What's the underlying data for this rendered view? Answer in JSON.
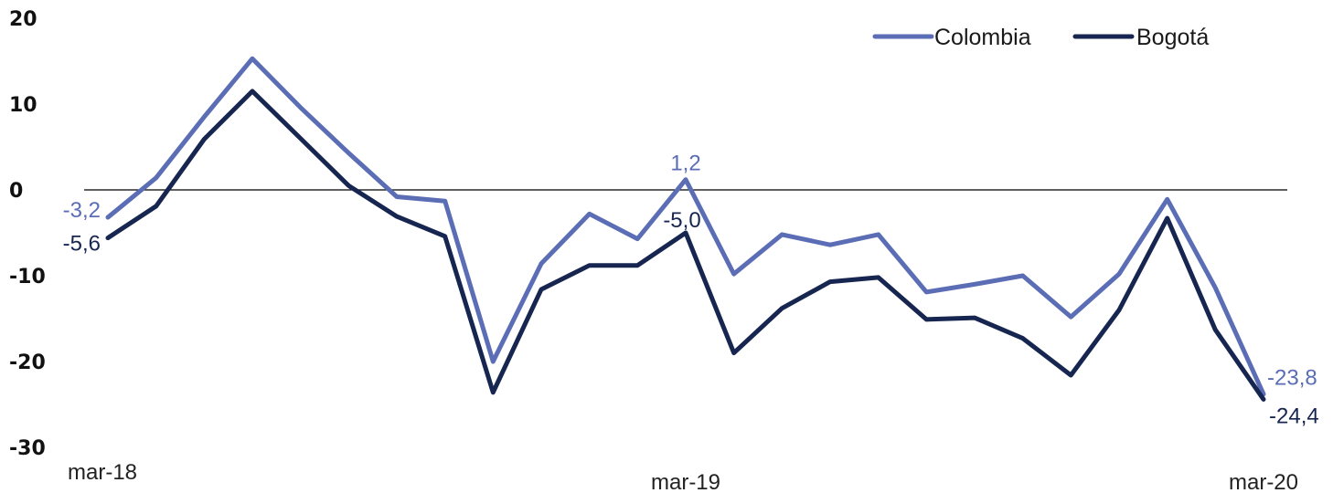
{
  "chart_data": {
    "type": "line",
    "title": "",
    "xlabel": "",
    "ylabel": "",
    "ylim": [
      -30,
      20
    ],
    "yticks": [
      20,
      10,
      0,
      -10,
      -20,
      -30
    ],
    "x_tick_labels": [
      "mar-18",
      "mar-19",
      "mar-20"
    ],
    "x_tick_indices": [
      0,
      12,
      24
    ],
    "zero_line": true,
    "grid": false,
    "legend_position": "top-right",
    "colors": {
      "Colombia": "#5b6db5",
      "Bogotá": "#172650"
    },
    "series": [
      {
        "name": "Colombia",
        "values": [
          -3.2,
          1.4,
          8.5,
          15.3,
          9.6,
          4.3,
          -0.8,
          -1.3,
          -20.0,
          -8.6,
          -2.8,
          -5.7,
          1.2,
          -9.8,
          -5.2,
          -6.4,
          -5.2,
          -11.9,
          -11.0,
          -10.0,
          -14.8,
          -9.8,
          -1.1,
          -11.4,
          -23.8
        ],
        "labels": [
          {
            "index": 0,
            "text": "-3,2"
          },
          {
            "index": 12,
            "text": "1,2"
          },
          {
            "index": 24,
            "text": "-23,8"
          }
        ]
      },
      {
        "name": "Bogotá",
        "values": [
          -5.6,
          -1.9,
          5.9,
          11.5,
          6.0,
          0.5,
          -3.1,
          -5.4,
          -23.6,
          -11.6,
          -8.8,
          -8.8,
          -5.0,
          -19.0,
          -13.8,
          -10.7,
          -10.2,
          -15.1,
          -14.9,
          -17.3,
          -21.6,
          -14.0,
          -3.3,
          -16.3,
          -24.4
        ],
        "labels": [
          {
            "index": 0,
            "text": "-5,6"
          },
          {
            "index": 12,
            "text": "-5,0"
          },
          {
            "index": 24,
            "text": "-24,4"
          }
        ]
      }
    ]
  }
}
